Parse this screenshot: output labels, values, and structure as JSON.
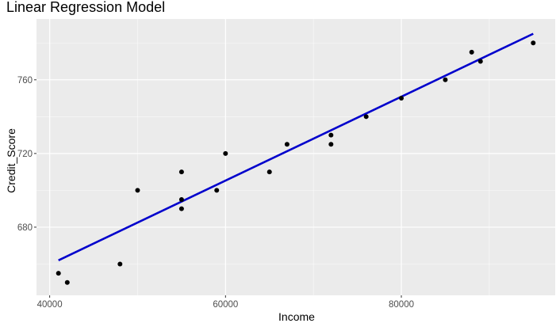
{
  "chart_data": {
    "type": "scatter",
    "title": "Linear Regression Model",
    "xlabel": "Income",
    "ylabel": "Credit_Score",
    "xlim": [
      38500,
      97500
    ],
    "ylim": [
      643,
      793
    ],
    "x_ticks": [
      40000,
      60000,
      80000
    ],
    "x_tick_labels": [
      "40000",
      "60000",
      "80000"
    ],
    "y_ticks": [
      680,
      720,
      760
    ],
    "y_tick_labels": [
      "680",
      "720",
      "760"
    ],
    "grid": true,
    "legend": "none",
    "series": [
      {
        "x": [
          41000,
          42000,
          48000,
          50000,
          55000,
          55000,
          55000,
          59000,
          60000,
          65000,
          67000,
          72000,
          72000,
          76000,
          80000,
          85000,
          88000,
          89000,
          95000
        ],
        "y": [
          655,
          650,
          660,
          700,
          710,
          695,
          690,
          700,
          720,
          710,
          725,
          730,
          725,
          740,
          750,
          760,
          775,
          770,
          780
        ]
      }
    ],
    "regression_line": {
      "x": [
        41000,
        95000
      ],
      "y": [
        662,
        785
      ]
    }
  },
  "colors": {
    "panel_background": "#EBEBEB",
    "grid_major": "#FFFFFF",
    "points": "#000000",
    "regression_line": "#0000CC",
    "tick_labels": "#4D4D4D"
  }
}
